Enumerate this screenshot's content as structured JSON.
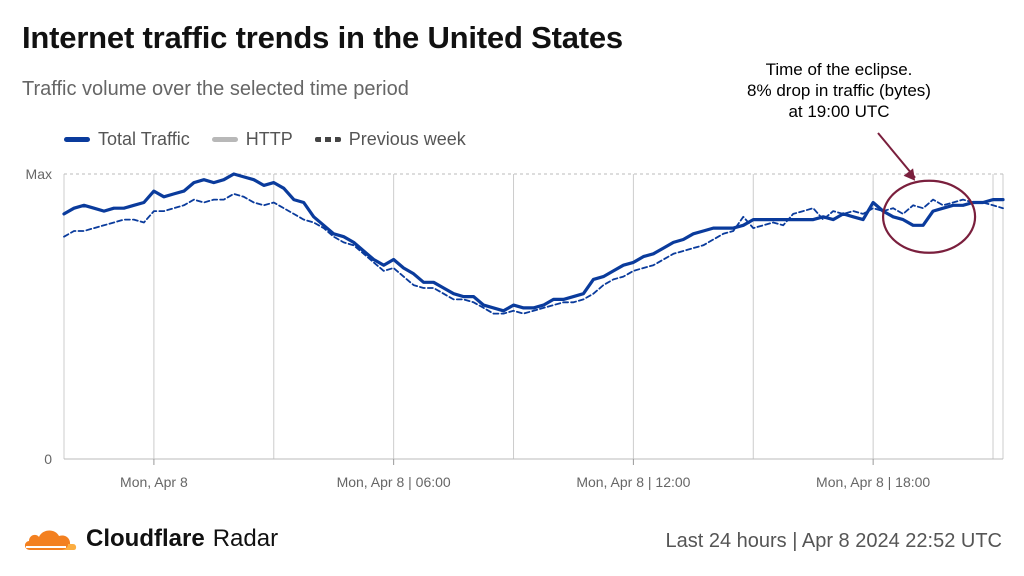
{
  "header": {
    "title": "Internet traffic trends in the United States",
    "subtitle": "Traffic volume over the selected time period"
  },
  "legend": {
    "total": "Total Traffic",
    "http": "HTTP",
    "previous": "Previous week"
  },
  "annotation": {
    "line1": "Time of the eclipse.",
    "line2": "8% drop in traffic (bytes)",
    "line3": "at 19:00 UTC"
  },
  "footer": {
    "brand": "Cloudflare",
    "product": "Radar",
    "range": "Last 24 hours | Apr 8 2024 22:52 UTC"
  },
  "colors": {
    "total": "#0a3b9c",
    "previous": "#0a3b9c",
    "http": "#b0b0b0",
    "annotation_circle": "#7a1f3d",
    "grid": "#cccccc",
    "logo_orange": "#f38020",
    "logo_light": "#fbad41"
  },
  "chart_data": {
    "type": "line",
    "x_unit": "hours",
    "x_note": "Time axis from Apr 8 2024 ~22:52 UTC minus 24h; x values are hours offset",
    "xlim": [
      -2.25,
      21.25
    ],
    "ylim": [
      0,
      1
    ],
    "y_ticks": [
      {
        "value": 1,
        "label": "Max"
      },
      {
        "value": 0,
        "label": "0"
      }
    ],
    "x_ticks": [
      {
        "value": 0,
        "label": "Mon, Apr 8"
      },
      {
        "value": 6,
        "label": "Mon, Apr 8 | 06:00"
      },
      {
        "value": 12,
        "label": "Mon, Apr 8 | 12:00"
      },
      {
        "value": 18,
        "label": "Mon, Apr 8 | 18:00"
      }
    ],
    "grid_x": [
      -2.25,
      0,
      3,
      6,
      9,
      12,
      15,
      18,
      21,
      21.25
    ],
    "series": [
      {
        "name": "Total Traffic",
        "style": "solid",
        "x": [
          -2.25,
          -2.0,
          -1.75,
          -1.5,
          -1.25,
          -1.0,
          -0.75,
          -0.5,
          -0.25,
          0.0,
          0.25,
          0.5,
          0.75,
          1.0,
          1.25,
          1.5,
          1.75,
          2.0,
          2.25,
          2.5,
          2.75,
          3.0,
          3.25,
          3.5,
          3.75,
          4.0,
          4.25,
          4.5,
          4.75,
          5.0,
          5.25,
          5.5,
          5.75,
          6.0,
          6.25,
          6.5,
          6.75,
          7.0,
          7.25,
          7.5,
          7.75,
          8.0,
          8.25,
          8.5,
          8.75,
          9.0,
          9.25,
          9.5,
          9.75,
          10.0,
          10.25,
          10.5,
          10.75,
          11.0,
          11.25,
          11.5,
          11.75,
          12.0,
          12.25,
          12.5,
          12.75,
          13.0,
          13.25,
          13.5,
          13.75,
          14.0,
          14.25,
          14.5,
          14.75,
          15.0,
          15.25,
          15.5,
          15.75,
          16.0,
          16.25,
          16.5,
          16.75,
          17.0,
          17.25,
          17.5,
          17.75,
          18.0,
          18.25,
          18.5,
          18.75,
          19.0,
          19.25,
          19.5,
          19.75,
          20.0,
          20.25,
          20.5,
          20.75,
          21.0,
          21.25
        ],
        "values": [
          0.86,
          0.88,
          0.89,
          0.88,
          0.87,
          0.88,
          0.88,
          0.89,
          0.9,
          0.94,
          0.92,
          0.93,
          0.94,
          0.97,
          0.98,
          0.97,
          0.98,
          1.0,
          0.99,
          0.98,
          0.96,
          0.97,
          0.95,
          0.91,
          0.9,
          0.85,
          0.82,
          0.79,
          0.78,
          0.76,
          0.73,
          0.7,
          0.68,
          0.7,
          0.67,
          0.65,
          0.62,
          0.62,
          0.6,
          0.58,
          0.57,
          0.57,
          0.54,
          0.53,
          0.52,
          0.54,
          0.53,
          0.53,
          0.54,
          0.56,
          0.56,
          0.57,
          0.58,
          0.63,
          0.64,
          0.66,
          0.68,
          0.69,
          0.71,
          0.72,
          0.74,
          0.76,
          0.77,
          0.79,
          0.8,
          0.81,
          0.81,
          0.81,
          0.82,
          0.84,
          0.84,
          0.84,
          0.84,
          0.84,
          0.84,
          0.84,
          0.85,
          0.84,
          0.86,
          0.85,
          0.84,
          0.9,
          0.87,
          0.85,
          0.84,
          0.82,
          0.82,
          0.87,
          0.88,
          0.89,
          0.89,
          0.9,
          0.9,
          0.91,
          0.91
        ],
        "color": "#0a3b9c"
      },
      {
        "name": "Previous week",
        "style": "dashed",
        "x": [
          -2.25,
          -2.0,
          -1.75,
          -1.5,
          -1.25,
          -1.0,
          -0.75,
          -0.5,
          -0.25,
          0.0,
          0.25,
          0.5,
          0.75,
          1.0,
          1.25,
          1.5,
          1.75,
          2.0,
          2.25,
          2.5,
          2.75,
          3.0,
          3.25,
          3.5,
          3.75,
          4.0,
          4.25,
          4.5,
          4.75,
          5.0,
          5.25,
          5.5,
          5.75,
          6.0,
          6.25,
          6.5,
          6.75,
          7.0,
          7.25,
          7.5,
          7.75,
          8.0,
          8.25,
          8.5,
          8.75,
          9.0,
          9.25,
          9.5,
          9.75,
          10.0,
          10.25,
          10.5,
          10.75,
          11.0,
          11.25,
          11.5,
          11.75,
          12.0,
          12.25,
          12.5,
          12.75,
          13.0,
          13.25,
          13.5,
          13.75,
          14.0,
          14.25,
          14.5,
          14.75,
          15.0,
          15.25,
          15.5,
          15.75,
          16.0,
          16.25,
          16.5,
          16.75,
          17.0,
          17.25,
          17.5,
          17.75,
          18.0,
          18.25,
          18.5,
          18.75,
          19.0,
          19.25,
          19.5,
          19.75,
          20.0,
          20.25,
          20.5,
          20.75,
          21.0,
          21.25
        ],
        "values": [
          0.78,
          0.8,
          0.8,
          0.81,
          0.82,
          0.83,
          0.84,
          0.84,
          0.83,
          0.87,
          0.87,
          0.88,
          0.89,
          0.91,
          0.9,
          0.91,
          0.91,
          0.93,
          0.92,
          0.9,
          0.89,
          0.9,
          0.88,
          0.86,
          0.84,
          0.83,
          0.81,
          0.78,
          0.76,
          0.75,
          0.72,
          0.69,
          0.66,
          0.67,
          0.64,
          0.61,
          0.6,
          0.6,
          0.58,
          0.56,
          0.56,
          0.55,
          0.53,
          0.51,
          0.51,
          0.52,
          0.51,
          0.52,
          0.53,
          0.54,
          0.55,
          0.55,
          0.56,
          0.58,
          0.61,
          0.63,
          0.64,
          0.66,
          0.67,
          0.68,
          0.7,
          0.72,
          0.73,
          0.74,
          0.75,
          0.77,
          0.79,
          0.8,
          0.85,
          0.81,
          0.82,
          0.83,
          0.82,
          0.86,
          0.87,
          0.88,
          0.84,
          0.87,
          0.86,
          0.87,
          0.86,
          0.88,
          0.87,
          0.88,
          0.86,
          0.89,
          0.88,
          0.91,
          0.89,
          0.9,
          0.91,
          0.9,
          0.9,
          0.89,
          0.88
        ],
        "color": "#0a3b9c"
      }
    ]
  }
}
